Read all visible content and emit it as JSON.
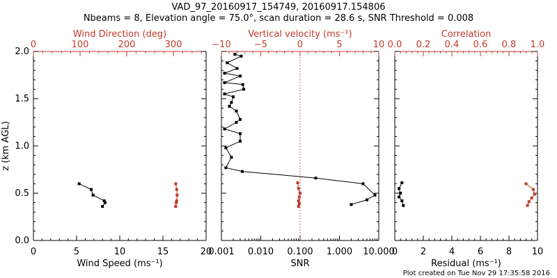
{
  "figure": {
    "title_line1": "VAD_97_20160917_154749, 20160917.154806",
    "title_line2": "Nbeams = 8, Elevation angle = 75.0°, scan duration = 28.6 s, SNR Threshold = 0.008",
    "footer": "Plot created on Tue Nov 29 17:35:58 2016"
  },
  "chart_data": [
    {
      "type": "line",
      "ylabel": "z (km AGL)",
      "ylim": [
        0,
        2
      ],
      "y_ticks": [
        "0.0",
        "0.5",
        "1.0",
        "1.5",
        "2.0"
      ],
      "xlabel": "Wind Speed (ms⁻¹)",
      "xlim": [
        0,
        20
      ],
      "x_ticks": [
        "0",
        "5",
        "10",
        "15",
        "20"
      ],
      "xlabel_top": "Wind Direction (deg)",
      "xlim_top": [
        0,
        370
      ],
      "x_ticks_top": [
        "0",
        "100",
        "200",
        "300"
      ],
      "series": [
        {
          "axis": "bottom",
          "color": "#000000",
          "x": [
            5.3,
            6.7,
            6.9,
            8.2,
            8.3,
            8.0
          ],
          "y": [
            0.6,
            0.54,
            0.48,
            0.42,
            0.4,
            0.36
          ]
        },
        {
          "axis": "top",
          "color": "#c0392b",
          "x": [
            305,
            307,
            308,
            307,
            306,
            305
          ],
          "y": [
            0.6,
            0.54,
            0.48,
            0.42,
            0.4,
            0.36
          ]
        }
      ]
    },
    {
      "type": "line",
      "ylim": [
        0,
        2
      ],
      "xlabel": "SNR",
      "xscale": "log",
      "xlim": [
        0.001,
        10
      ],
      "x_ticks": [
        "0.001",
        "0.010",
        "0.100",
        "1.000",
        "10.000"
      ],
      "xlabel_top": "Vertical velocity (ms⁻¹)",
      "xlim_top": [
        -10,
        10
      ],
      "x_ticks_top": [
        "−10",
        "−5",
        "0",
        "5",
        "10"
      ],
      "zero_line_top": 0,
      "series": [
        {
          "axis": "bottom",
          "color": "#000000",
          "x": [
            0.0022,
            0.0032,
            0.0014,
            0.0025,
            0.0012,
            0.003,
            0.0012,
            0.0035,
            0.0037,
            0.0012,
            0.002,
            0.0018,
            0.0016,
            0.0024,
            0.003,
            0.0024,
            0.0012,
            0.003,
            0.003,
            0.0013,
            0.0018,
            0.0013,
            0.0034,
            0.25,
            4.0,
            8.0,
            5.0,
            2.0
          ],
          "y": [
            1.97,
            1.95,
            1.88,
            1.82,
            1.77,
            1.74,
            1.67,
            1.65,
            1.6,
            1.55,
            1.52,
            1.46,
            1.42,
            1.37,
            1.28,
            1.25,
            1.18,
            1.13,
            1.05,
            0.98,
            0.88,
            0.77,
            0.73,
            0.66,
            0.6,
            0.48,
            0.43,
            0.38
          ]
        },
        {
          "axis": "top",
          "color": "#c0392b",
          "x": [
            -0.3,
            -0.2,
            0.0,
            -0.1,
            -0.2,
            -0.1,
            -0.2
          ],
          "y": [
            0.61,
            0.55,
            0.5,
            0.46,
            0.42,
            0.39,
            0.36
          ]
        }
      ]
    },
    {
      "type": "line",
      "ylim": [
        0,
        2
      ],
      "xlabel": "Residual (ms⁻¹)",
      "xlim": [
        0,
        10
      ],
      "x_ticks": [
        "0",
        "2",
        "4",
        "6",
        "8",
        "10"
      ],
      "xlabel_top": "Correlation",
      "xlim_top": [
        0,
        1
      ],
      "x_ticks_top": [
        "0.0",
        "0.2",
        "0.4",
        "0.6",
        "0.8",
        "1.0"
      ],
      "series": [
        {
          "axis": "bottom",
          "color": "#000000",
          "x": [
            0.5,
            0.3,
            0.4,
            0.3,
            0.5,
            0.6
          ],
          "y": [
            0.61,
            0.55,
            0.5,
            0.46,
            0.42,
            0.37
          ]
        },
        {
          "axis": "top",
          "color": "#c0392b",
          "x": [
            0.92,
            0.97,
            0.98,
            0.96,
            0.94,
            0.93
          ],
          "y": [
            0.6,
            0.54,
            0.49,
            0.45,
            0.41,
            0.37
          ]
        }
      ]
    }
  ]
}
